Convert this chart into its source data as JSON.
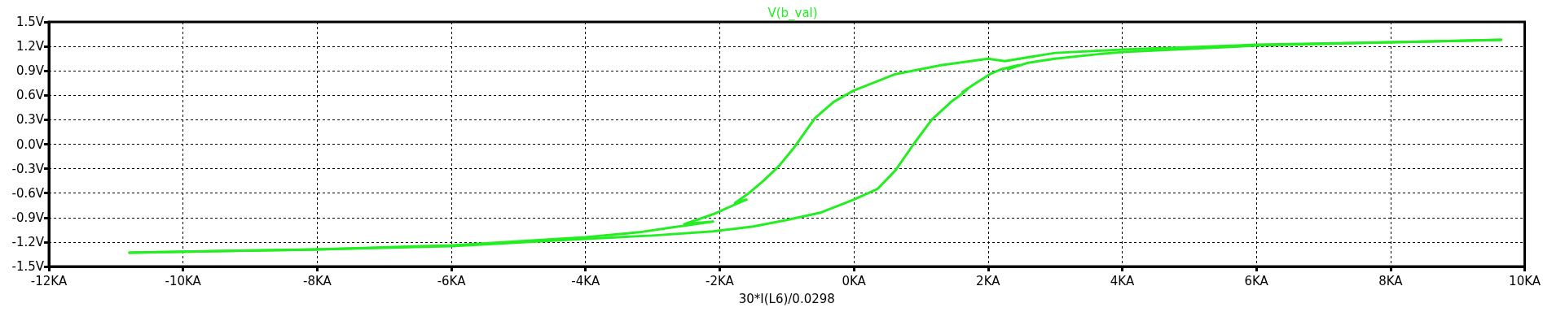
{
  "chart_data": {
    "type": "line",
    "title": "V(b_val)",
    "xlabel": "30*I(L6)/0.0298",
    "series": [
      {
        "color": "#22ee22",
        "x": [
          -10.8,
          -8,
          -6,
          -4,
          -3,
          -2.1,
          -1.5,
          -1.0,
          -0.5,
          0,
          0.35,
          0.62,
          0.89,
          1.16,
          1.45,
          1.6,
          1.7,
          1.62,
          1.8,
          2.03,
          2.2,
          2.45,
          2.3,
          2.6,
          3.0,
          3.7,
          4,
          6,
          8,
          9.65
        ],
        "values": [
          -1.33,
          -1.29,
          -1.25,
          -1.16,
          -1.12,
          -1.07,
          -1.01,
          -0.93,
          -0.84,
          -0.68,
          -0.55,
          -0.32,
          0.0,
          0.3,
          0.52,
          0.61,
          0.68,
          0.64,
          0.74,
          0.86,
          0.92,
          0.97,
          0.92,
          1.0,
          1.05,
          1.11,
          1.13,
          1.21,
          1.25,
          1.28
        ]
      },
      {
        "color": "#22ee22",
        "x": [
          -10.8,
          -8,
          -6,
          -4,
          -3.2,
          -2.7,
          -2.1,
          -2.53,
          -2.1,
          -1.8,
          -1.6,
          -1.77,
          -1.55,
          -1.35,
          -1.12,
          -0.9,
          -0.58,
          -0.3,
          0,
          0.62,
          1.3,
          2.0,
          2.25,
          3,
          4,
          6,
          8,
          9.65
        ],
        "values": [
          -1.33,
          -1.29,
          -1.24,
          -1.14,
          -1.08,
          -1.02,
          -0.95,
          -0.98,
          -0.86,
          -0.75,
          -0.68,
          -0.72,
          -0.59,
          -0.45,
          -0.27,
          -0.05,
          0.32,
          0.52,
          0.66,
          0.86,
          0.97,
          1.05,
          1.02,
          1.12,
          1.16,
          1.22,
          1.25,
          1.28
        ]
      }
    ],
    "xlim": [
      -12,
      10
    ],
    "xticks": [
      {
        "value": -12,
        "label": "-12KA"
      },
      {
        "value": -10,
        "label": "-10KA"
      },
      {
        "value": -8,
        "label": "-8KA"
      },
      {
        "value": -6,
        "label": "-6KA"
      },
      {
        "value": -4,
        "label": "-4KA"
      },
      {
        "value": -2,
        "label": "-2KA"
      },
      {
        "value": 0,
        "label": "0KA"
      },
      {
        "value": 2,
        "label": "2KA"
      },
      {
        "value": 4,
        "label": "4KA"
      },
      {
        "value": 6,
        "label": "6KA"
      },
      {
        "value": 8,
        "label": "8KA"
      },
      {
        "value": 10,
        "label": "10KA"
      }
    ],
    "ylim": [
      -1.5,
      1.5
    ],
    "yticks": [
      {
        "value": -1.5,
        "label": "-1.5V"
      },
      {
        "value": -1.2,
        "label": "-1.2V"
      },
      {
        "value": -0.9,
        "label": "-0.9V"
      },
      {
        "value": -0.6,
        "label": "-0.6V"
      },
      {
        "value": -0.3,
        "label": "-0.3V"
      },
      {
        "value": 0,
        "label": "0.0V"
      },
      {
        "value": 0.3,
        "label": "0.3V"
      },
      {
        "value": 0.6,
        "label": "0.6V"
      },
      {
        "value": 0.9,
        "label": "0.9V"
      },
      {
        "value": 1.2,
        "label": "1.2V"
      },
      {
        "value": 1.5,
        "label": "1.5V"
      }
    ],
    "grid": true,
    "line_style": "solid",
    "marker": "none"
  }
}
